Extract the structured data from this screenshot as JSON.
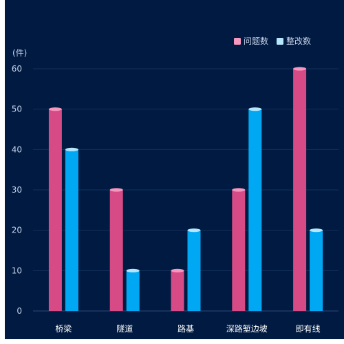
{
  "chart_data": {
    "type": "bar",
    "unit_label": "(件)",
    "categories": [
      "桥梁",
      "隧道",
      "路基",
      "深路堑边坡",
      "即有线"
    ],
    "series": [
      {
        "name": "问题数",
        "values": [
          50,
          30,
          10,
          30,
          60
        ],
        "color": "#d64a86",
        "cap_color": "#f597be"
      },
      {
        "name": "整改数",
        "values": [
          40,
          10,
          20,
          50,
          20
        ],
        "color": "#00a8f4",
        "cap_color": "#b6e6fb"
      }
    ],
    "ylim": [
      0,
      60
    ],
    "y_ticks": [
      0,
      10,
      20,
      30,
      40,
      50,
      60
    ],
    "grid": true,
    "legend_position": "top-right"
  }
}
